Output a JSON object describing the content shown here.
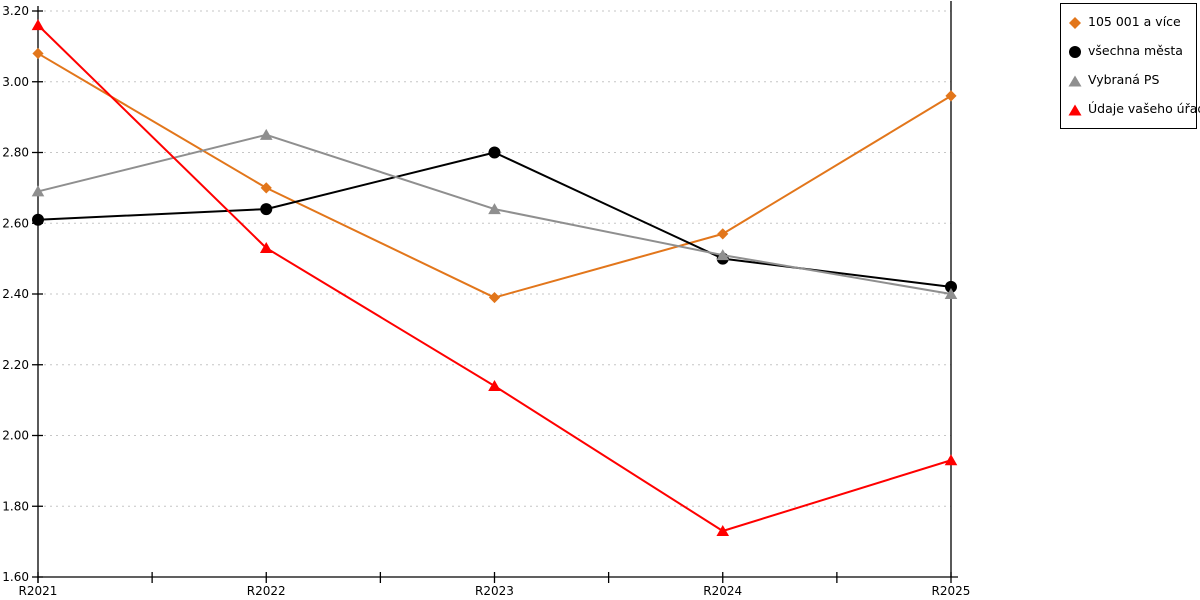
{
  "chart_data": {
    "type": "line",
    "title": "",
    "xlabel": "",
    "ylabel": "",
    "categories": [
      "R2021",
      "R2022",
      "R2023",
      "R2024",
      "R2025"
    ],
    "series": [
      {
        "name": "105 001 a více",
        "marker": "diamond",
        "color": "#E2761B",
        "values": [
          3.08,
          2.7,
          2.39,
          2.57,
          2.96
        ]
      },
      {
        "name": "všechna města",
        "marker": "circle",
        "color": "#000000",
        "values": [
          2.61,
          2.64,
          2.8,
          2.5,
          2.42
        ]
      },
      {
        "name": "Vybraná PS",
        "marker": "triangle",
        "color": "#8F8F8F",
        "values": [
          2.69,
          2.85,
          2.64,
          2.51,
          2.4
        ]
      },
      {
        "name": "Údaje vašeho úřadu",
        "marker": "triangle",
        "color": "#FF0000",
        "values": [
          3.16,
          2.53,
          2.14,
          1.73,
          1.93
        ]
      }
    ],
    "ylim": [
      1.6,
      3.2
    ],
    "y_tick_step": 0.2,
    "y_tick_labels": [
      "1.60",
      "1.80",
      "2.00",
      "2.20",
      "2.40",
      "2.60",
      "2.80",
      "3.00",
      "3.20"
    ],
    "x_tick_labels": [
      "R2021",
      "R2022",
      "R2023",
      "R2024",
      "R2025"
    ],
    "grid": "horizontal-dotted",
    "gridline_color": "#C6C6C6",
    "axis_color": "#000000",
    "tick_label_color": "#000000",
    "legend_position": "top-right",
    "legend_border_color": "#000000"
  }
}
